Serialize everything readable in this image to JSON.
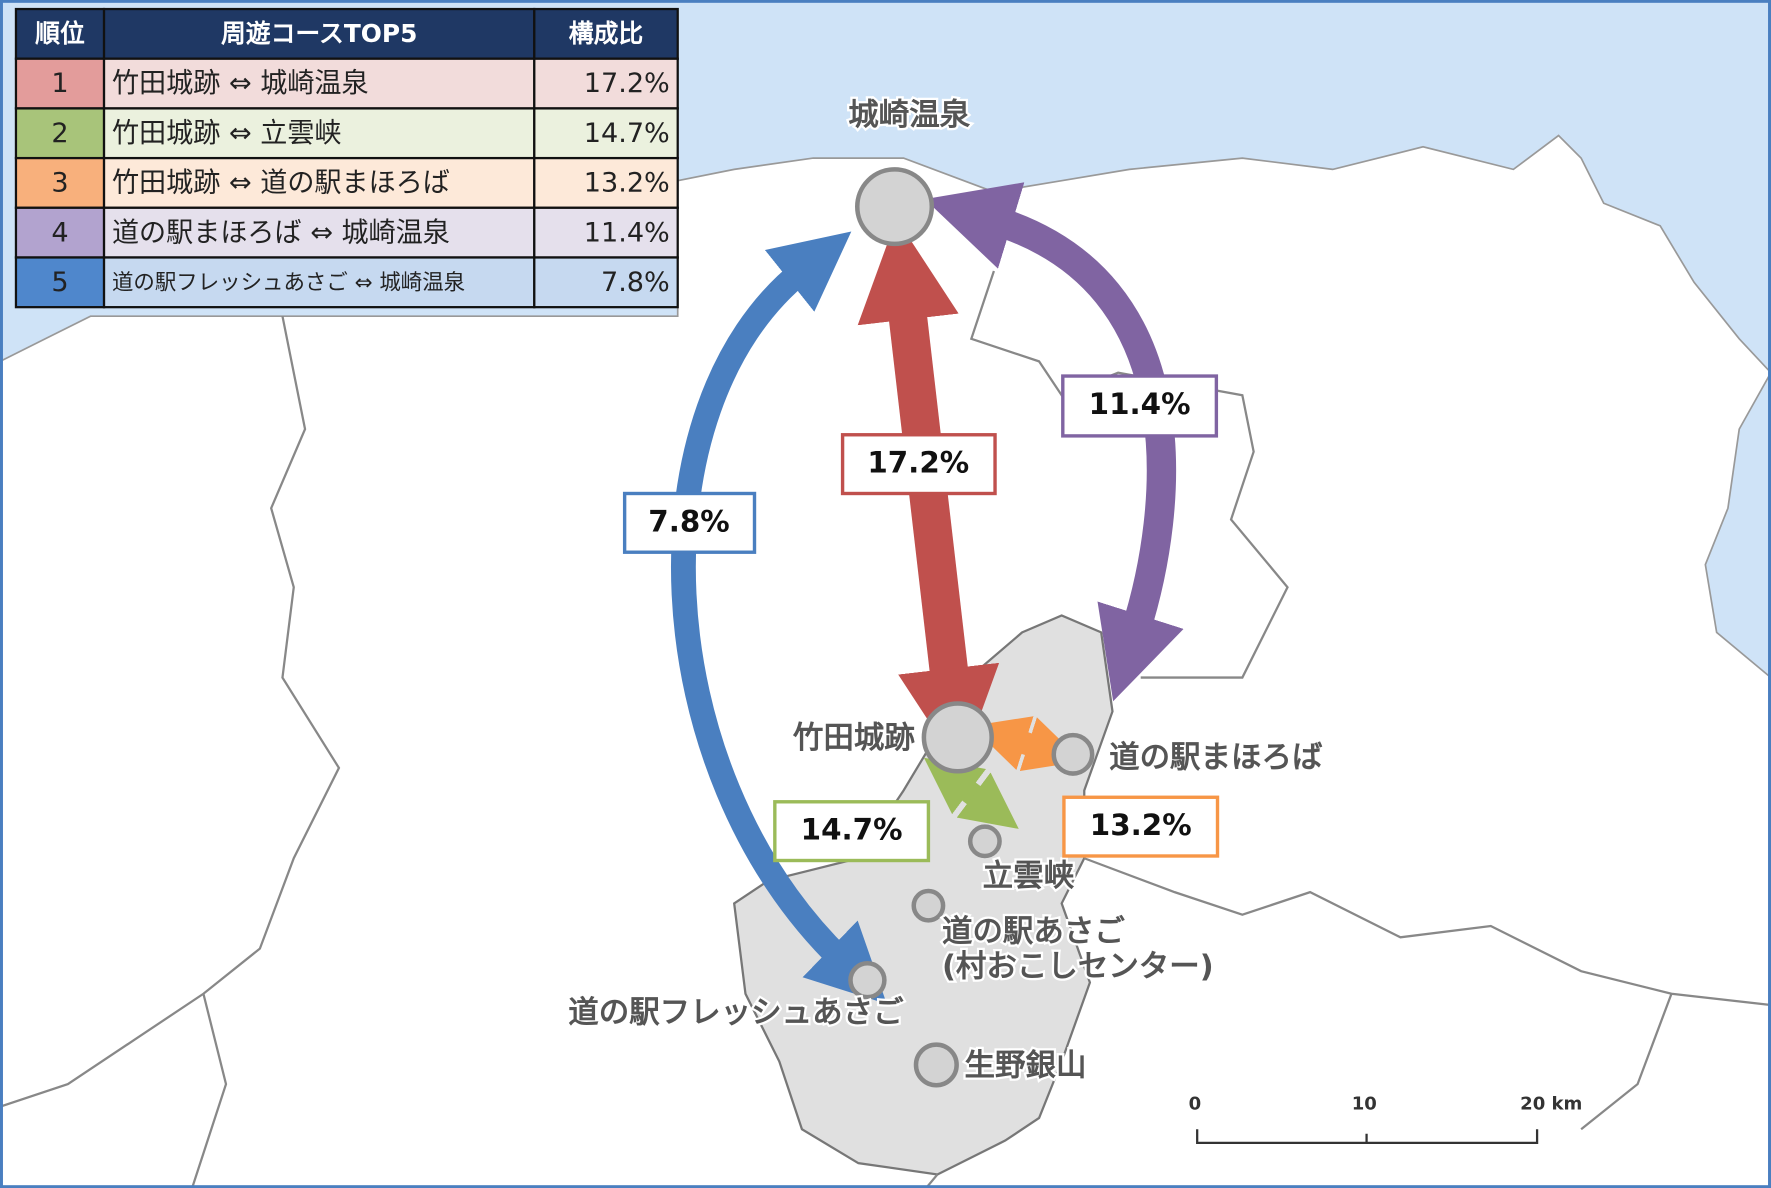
{
  "table": {
    "header": [
      "順位",
      "周遊コースTOP5",
      "構成比"
    ],
    "rows": [
      [
        "1",
        "竹田城跡 ⇔ 城崎温泉",
        "17.2%"
      ],
      [
        "2",
        "竹田城跡 ⇔ 立雲峡",
        "14.7%"
      ],
      [
        "3",
        "竹田城跡 ⇔ 道の駅まほろば",
        "13.2%"
      ],
      [
        "4",
        "道の駅まほろば ⇔ 城崎温泉",
        "11.4%"
      ],
      [
        "5",
        "道の駅フレッシュあさご ⇔ 城崎温泉",
        "7.8%"
      ]
    ]
  },
  "places": [
    "城崎温泉",
    "竹田城跡",
    "道の駅まほろば",
    "立雲峡",
    "道の駅あさご",
    "(村おこしセンター)",
    "道の駅フレッシュあさご",
    "生野銀山"
  ],
  "flows": [
    "7.8%",
    "17.2%",
    "11.4%",
    "14.7%",
    "13.2%"
  ],
  "scale_bar": [
    "0",
    "10",
    "20 km"
  ]
}
